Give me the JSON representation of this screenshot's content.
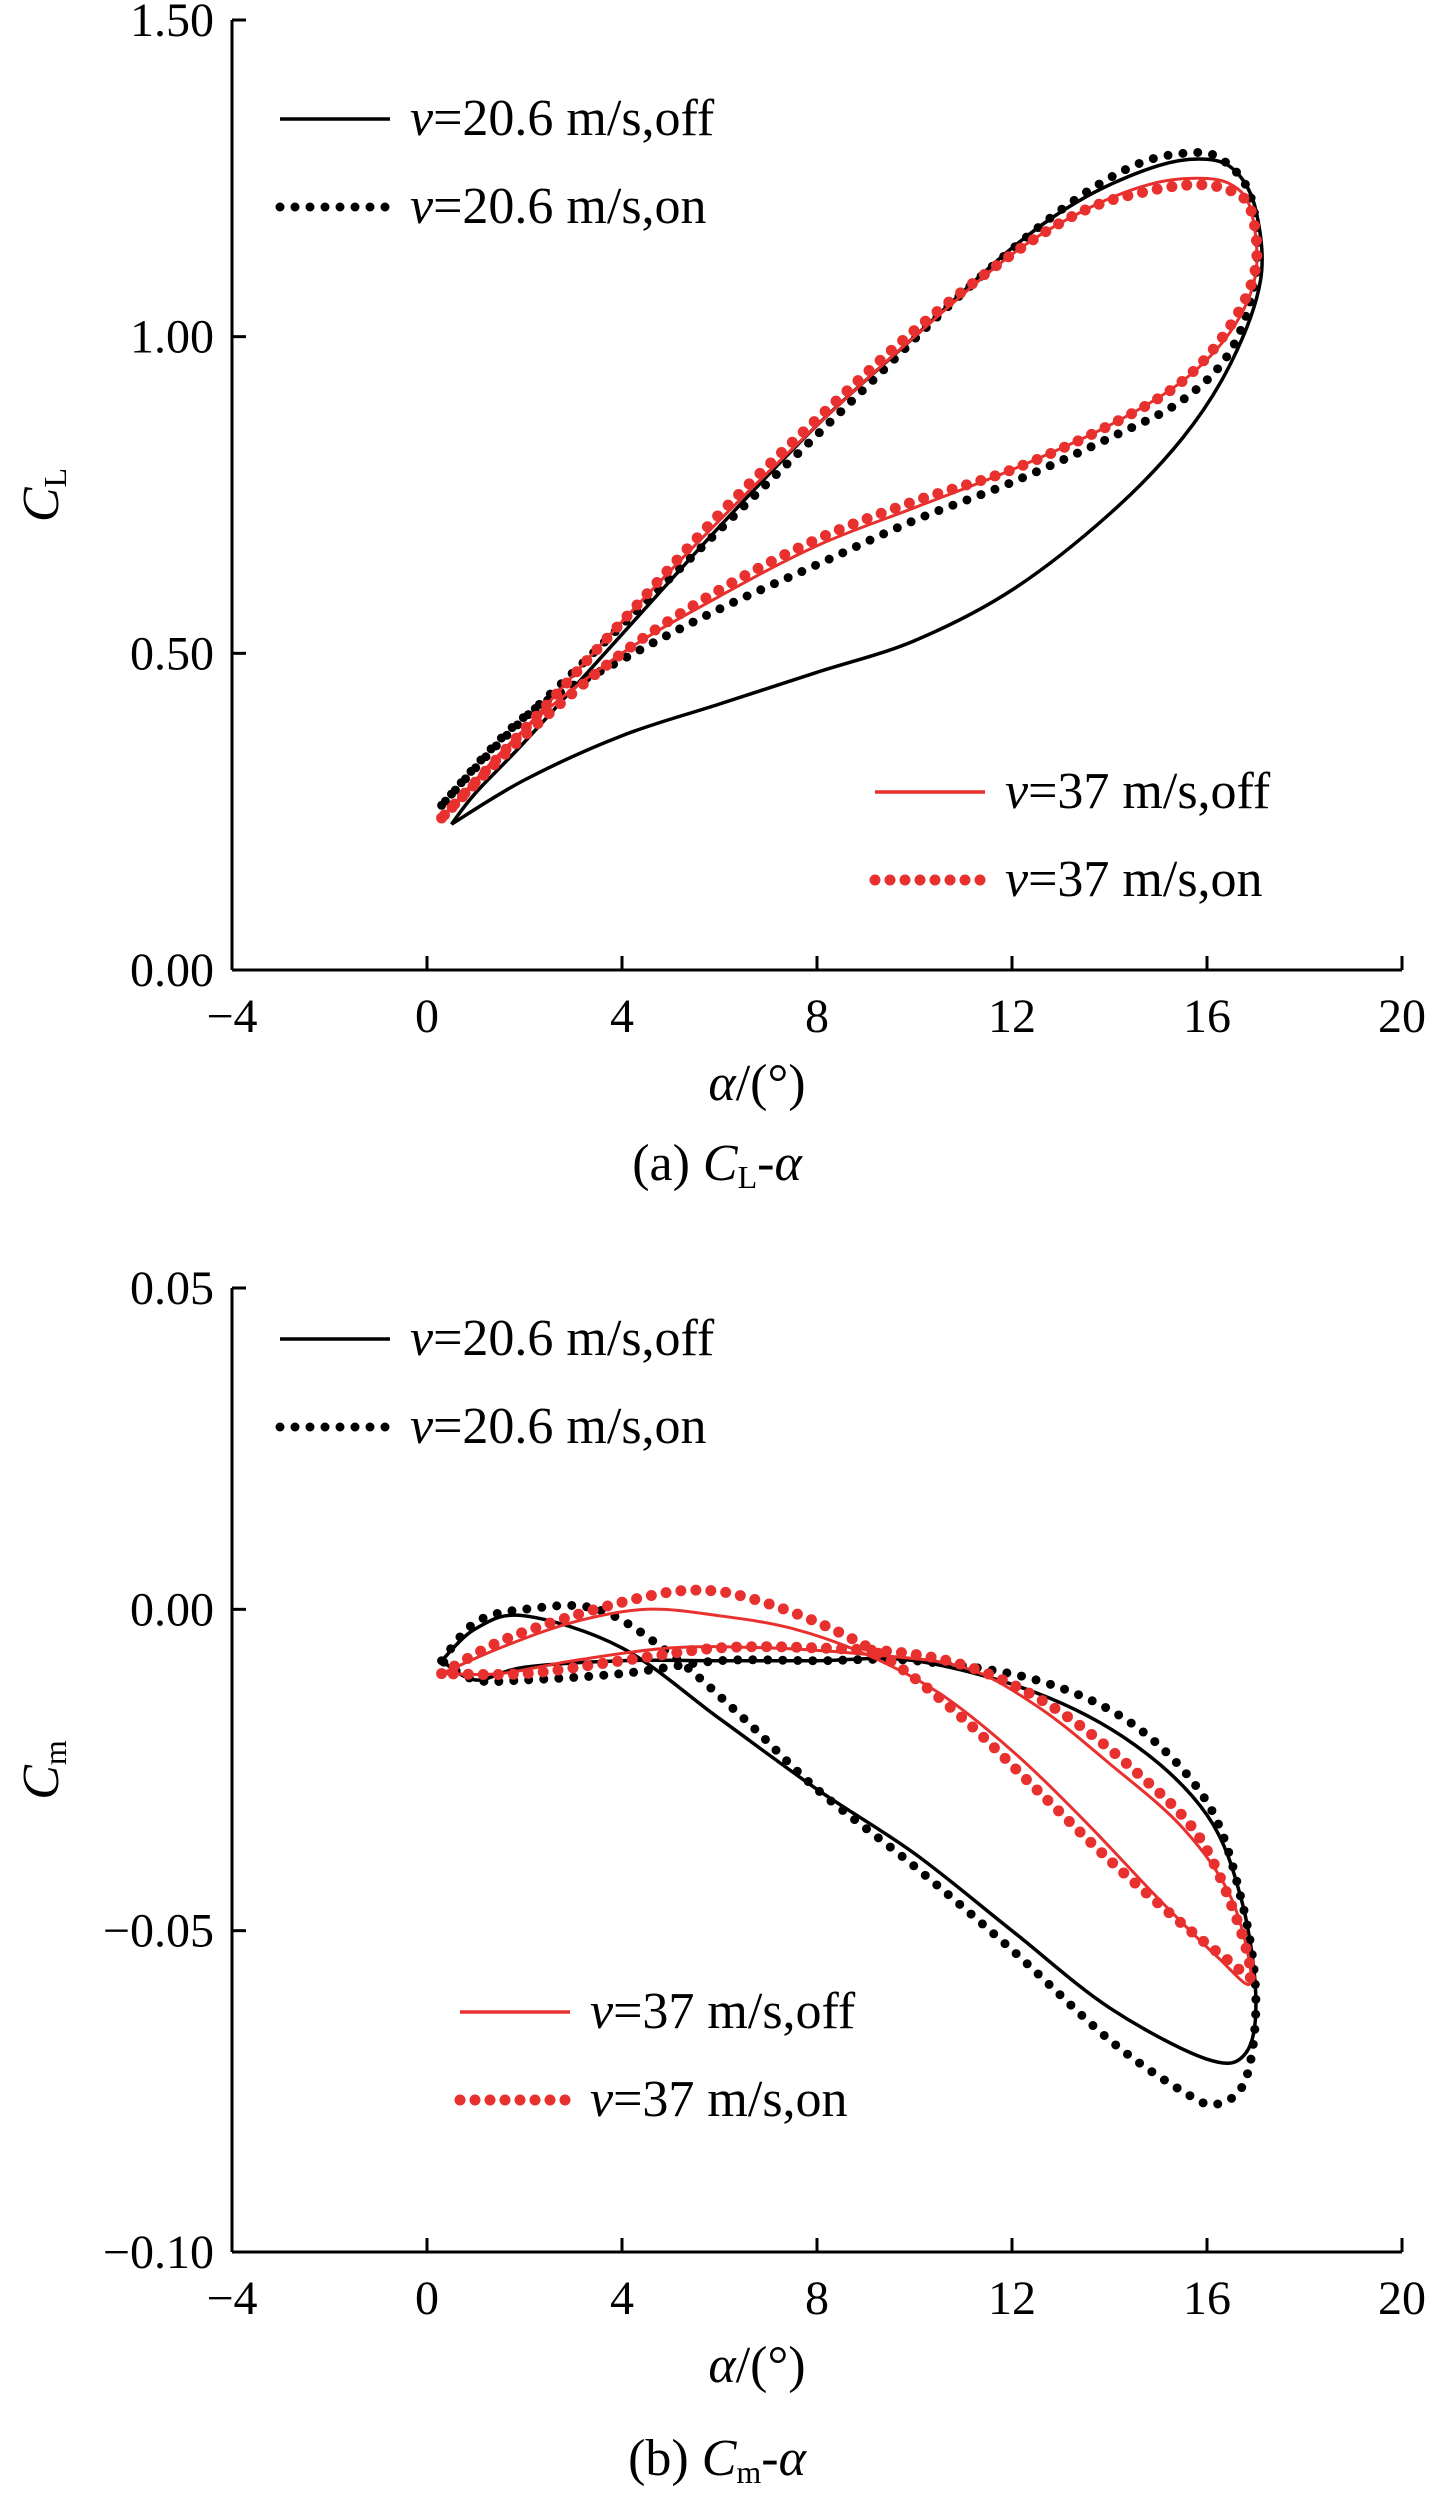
{
  "chart_data": [
    {
      "type": "line",
      "caption": {
        "prefix": "(a) ",
        "var": "C",
        "sub": "L",
        "dash": "-",
        "alpha": "α"
      },
      "xlabel": {
        "var": "α",
        "unit": "/(°)"
      },
      "ylabel": {
        "var": "C",
        "sub": "L"
      },
      "xlim": [
        -4,
        20
      ],
      "ylim": [
        0,
        1.5
      ],
      "xticks": [
        "−4",
        "0",
        "4",
        "8",
        "12",
        "16",
        "20"
      ],
      "yticks": [
        "0.00",
        "0.50",
        "1.00",
        "1.50"
      ],
      "legend_upper": [
        {
          "var": "v",
          "text": "=20.6 m/s,off"
        },
        {
          "var": "v",
          "text": "=20.6 m/s,on"
        }
      ],
      "legend_lower": [
        {
          "var": "v",
          "text": "=37 m/s,off"
        },
        {
          "var": "v",
          "text": "=37 m/s,on"
        }
      ],
      "series": [
        {
          "name": "v=20.6 m/s,off",
          "color": "#000000",
          "style": "solid",
          "x": [
            0.5,
            2,
            4,
            6,
            8,
            10,
            12,
            14,
            15.5,
            16.5,
            17.1,
            17.0,
            16.6,
            16.0,
            15.0,
            13.5,
            12,
            10,
            8,
            6,
            4,
            2,
            1,
            0.5
          ],
          "y": [
            0.23,
            0.3,
            0.37,
            0.42,
            0.47,
            0.52,
            0.6,
            0.72,
            0.84,
            0.96,
            1.09,
            1.2,
            1.26,
            1.28,
            1.27,
            1.22,
            1.14,
            1.0,
            0.86,
            0.7,
            0.53,
            0.36,
            0.28,
            0.23
          ]
        },
        {
          "name": "v=20.6 m/s,on",
          "color": "#000000",
          "style": "dotted",
          "x": [
            0.3,
            2,
            4,
            6,
            8,
            10,
            12,
            14,
            15.5,
            16.5,
            17.0,
            16.9,
            16.3,
            15.6,
            14.5,
            13,
            11,
            9,
            7,
            5,
            3,
            1.5,
            0.3
          ],
          "y": [
            0.26,
            0.4,
            0.49,
            0.57,
            0.64,
            0.71,
            0.77,
            0.84,
            0.9,
            0.98,
            1.1,
            1.22,
            1.28,
            1.29,
            1.27,
            1.2,
            1.07,
            0.92,
            0.77,
            0.62,
            0.47,
            0.36,
            0.26
          ]
        },
        {
          "name": "v=37 m/s,off",
          "color": "#e8302e",
          "style": "solid",
          "x": [
            0.3,
            2,
            4,
            6,
            8,
            10,
            12,
            14,
            15.5,
            16.5,
            17.0,
            16.9,
            16.5,
            15.8,
            14.8,
            13.5,
            12,
            10,
            8,
            6,
            4,
            2,
            0.3
          ],
          "y": [
            0.24,
            0.38,
            0.5,
            0.59,
            0.67,
            0.73,
            0.79,
            0.86,
            0.93,
            1.01,
            1.1,
            1.2,
            1.24,
            1.25,
            1.24,
            1.2,
            1.13,
            1.0,
            0.86,
            0.71,
            0.55,
            0.38,
            0.24
          ]
        },
        {
          "name": "v=37 m/s,on",
          "color": "#e8302e",
          "style": "dotted",
          "x": [
            0.3,
            2,
            4,
            6,
            8,
            10,
            12,
            14,
            15.5,
            16.5,
            17.0,
            16.9,
            16.5,
            15.8,
            14.8,
            13.5,
            12,
            10,
            8,
            6,
            4,
            2,
            0.3
          ],
          "y": [
            0.24,
            0.37,
            0.5,
            0.6,
            0.68,
            0.74,
            0.79,
            0.86,
            0.93,
            1.02,
            1.11,
            1.2,
            1.23,
            1.24,
            1.23,
            1.2,
            1.13,
            1.01,
            0.87,
            0.72,
            0.55,
            0.38,
            0.24
          ]
        }
      ]
    },
    {
      "type": "line",
      "caption": {
        "prefix": "(b) ",
        "var": "C",
        "sub": "m",
        "dash": "-",
        "alpha": "α"
      },
      "xlabel": {
        "var": "α",
        "unit": "/(°)"
      },
      "ylabel": {
        "var": "C",
        "sub": "m"
      },
      "xlim": [
        -4,
        20
      ],
      "ylim": [
        -0.1,
        0.05
      ],
      "xticks": [
        "−4",
        "0",
        "4",
        "8",
        "12",
        "16",
        "20"
      ],
      "yticks": [
        "−0.10",
        "−0.05",
        "0.00",
        "0.05"
      ],
      "legend_upper": [
        {
          "var": "v",
          "text": "=20.6 m/s,off"
        },
        {
          "var": "v",
          "text": "=20.6 m/s,on"
        }
      ],
      "legend_lower": [
        {
          "var": "v",
          "text": "=37 m/s,off"
        },
        {
          "var": "v",
          "text": "=37 m/s,on"
        }
      ],
      "series": [
        {
          "name": "v=20.6 m/s,off",
          "color": "#000000",
          "style": "solid",
          "x": [
            0.3,
            1,
            2,
            4,
            6,
            8,
            10,
            12,
            14,
            16,
            16.8,
            17.0,
            16.7,
            16.0,
            14.5,
            12.5,
            10,
            8,
            6,
            4,
            2,
            1,
            0.3
          ],
          "y": [
            -0.008,
            -0.003,
            -0.001,
            -0.006,
            -0.017,
            -0.028,
            -0.038,
            -0.05,
            -0.062,
            -0.07,
            -0.069,
            -0.06,
            -0.045,
            -0.032,
            -0.021,
            -0.013,
            -0.008,
            -0.008,
            -0.008,
            -0.008,
            -0.009,
            -0.011,
            -0.008
          ]
        },
        {
          "name": "v=20.6 m/s,on",
          "color": "#000000",
          "style": "dotted",
          "x": [
            0.3,
            1,
            2,
            3.5,
            5,
            6.5,
            8,
            10,
            12,
            14,
            15.5,
            16.2,
            16.8,
            17.0,
            16.7,
            16.0,
            14.5,
            12.5,
            10,
            8,
            6,
            4,
            2,
            1,
            0.3
          ],
          "y": [
            -0.008,
            -0.002,
            0.0,
            0.0,
            -0.007,
            -0.017,
            -0.028,
            -0.04,
            -0.053,
            -0.067,
            -0.075,
            -0.077,
            -0.073,
            -0.06,
            -0.045,
            -0.03,
            -0.018,
            -0.011,
            -0.008,
            -0.008,
            -0.008,
            -0.01,
            -0.011,
            -0.011,
            -0.008
          ]
        },
        {
          "name": "v=37 m/s,off",
          "color": "#e8302e",
          "style": "solid",
          "x": [
            0.3,
            1.5,
            3,
            4.5,
            6,
            7.5,
            9,
            10.5,
            12,
            13.5,
            15,
            16.2,
            16.9,
            16.5,
            15.5,
            14,
            12.5,
            11,
            9,
            7,
            5,
            3,
            1.5,
            0.3
          ],
          "y": [
            -0.01,
            -0.006,
            -0.002,
            0.0,
            -0.001,
            -0.003,
            -0.007,
            -0.013,
            -0.022,
            -0.033,
            -0.045,
            -0.054,
            -0.058,
            -0.045,
            -0.034,
            -0.024,
            -0.015,
            -0.009,
            -0.007,
            -0.006,
            -0.006,
            -0.008,
            -0.01,
            -0.01
          ]
        },
        {
          "name": "v=37 m/s,on",
          "color": "#e8302e",
          "style": "dotted",
          "x": [
            0.3,
            1.5,
            3,
            4.5,
            5.5,
            6.5,
            8,
            9.5,
            11,
            12.5,
            14,
            15.5,
            16.5,
            16.9,
            16.6,
            15.8,
            14.5,
            13,
            11.5,
            10,
            8,
            6,
            4,
            2,
            0.3
          ],
          "y": [
            -0.01,
            -0.005,
            -0.001,
            0.002,
            0.003,
            0.002,
            -0.002,
            -0.008,
            -0.017,
            -0.028,
            -0.039,
            -0.049,
            -0.055,
            -0.057,
            -0.048,
            -0.035,
            -0.025,
            -0.016,
            -0.01,
            -0.007,
            -0.006,
            -0.006,
            -0.008,
            -0.01,
            -0.01
          ]
        }
      ]
    }
  ]
}
